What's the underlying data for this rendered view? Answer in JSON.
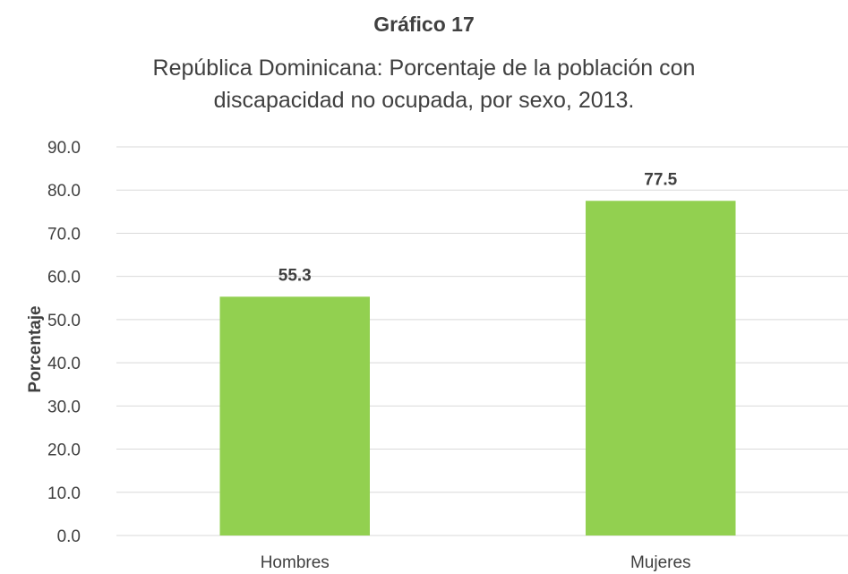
{
  "chart_data": {
    "type": "bar",
    "title": "Gráfico 17",
    "subtitle_lines": [
      "República Dominicana: Porcentaje de la población con",
      "discapacidad no ocupada, por sexo, 2013."
    ],
    "ylabel": "Porcentaje",
    "xlabel": "",
    "categories": [
      "Hombres",
      "Mujeres"
    ],
    "values": [
      55.3,
      77.5
    ],
    "data_labels": [
      "55.3",
      "77.5"
    ],
    "ylim": [
      0,
      90
    ],
    "yticks": [
      "0.0",
      "10.0",
      "20.0",
      "30.0",
      "40.0",
      "50.0",
      "60.0",
      "70.0",
      "80.0",
      "90.0"
    ],
    "grid": true,
    "legend": "none",
    "bar_color": "#92d050",
    "grid_color": "#d9d9d9"
  }
}
